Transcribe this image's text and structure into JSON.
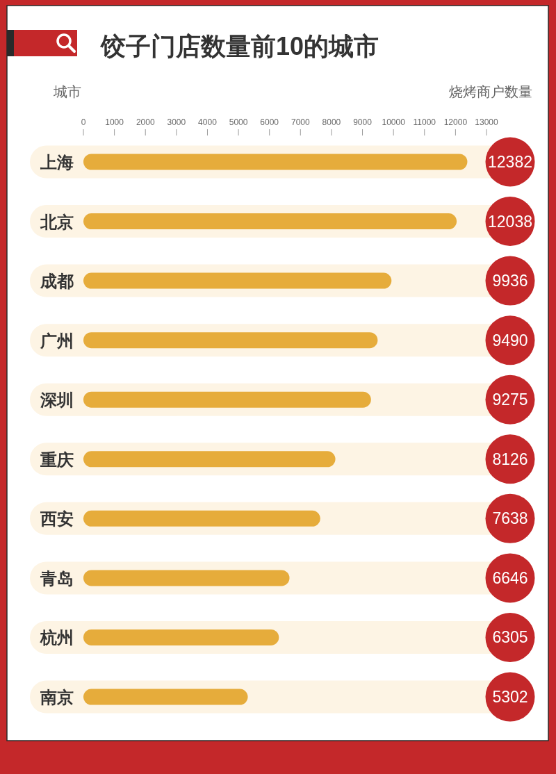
{
  "chart_data": {
    "type": "bar",
    "orientation": "horizontal",
    "title": "饺子门店数量前10的城市",
    "ylabel": "城市",
    "xlabel": "烧烤商户数量",
    "categories": [
      "上海",
      "北京",
      "成都",
      "广州",
      "深圳",
      "重庆",
      "西安",
      "青岛",
      "杭州",
      "南京"
    ],
    "values": [
      12382,
      12038,
      9936,
      9490,
      9275,
      8126,
      7638,
      6646,
      6305,
      5302
    ],
    "color": "#e6ac3b",
    "xlim": [
      0,
      13000
    ],
    "xticks": [
      0,
      1000,
      2000,
      3000,
      4000,
      5000,
      6000,
      7000,
      8000,
      9000,
      10000,
      11000,
      12000,
      13000
    ],
    "data_labels": true,
    "bands": [
      {
        "axis": "y",
        "from": "上海",
        "to": "上海",
        "color": "#fdf4e4"
      },
      {
        "axis": "y",
        "from": "北京",
        "to": "北京",
        "color": "#fdf4e4"
      },
      {
        "axis": "y",
        "from": "成都",
        "to": "成都",
        "color": "#fdf4e4"
      },
      {
        "axis": "y",
        "from": "广州",
        "to": "广州",
        "color": "#fdf4e4"
      },
      {
        "axis": "y",
        "from": "深圳",
        "to": "深圳",
        "color": "#fdf4e4"
      },
      {
        "axis": "y",
        "from": "重庆",
        "to": "重庆",
        "color": "#fdf4e4"
      },
      {
        "axis": "y",
        "from": "西安",
        "to": "西安",
        "color": "#fdf4e4"
      },
      {
        "axis": "y",
        "from": "青岛",
        "to": "青岛",
        "color": "#fdf4e4"
      },
      {
        "axis": "y",
        "from": "杭州",
        "to": "杭州",
        "color": "#fdf4e4"
      },
      {
        "axis": "y",
        "from": "南京",
        "to": "南京",
        "color": "#fdf4e4"
      }
    ]
  }
}
